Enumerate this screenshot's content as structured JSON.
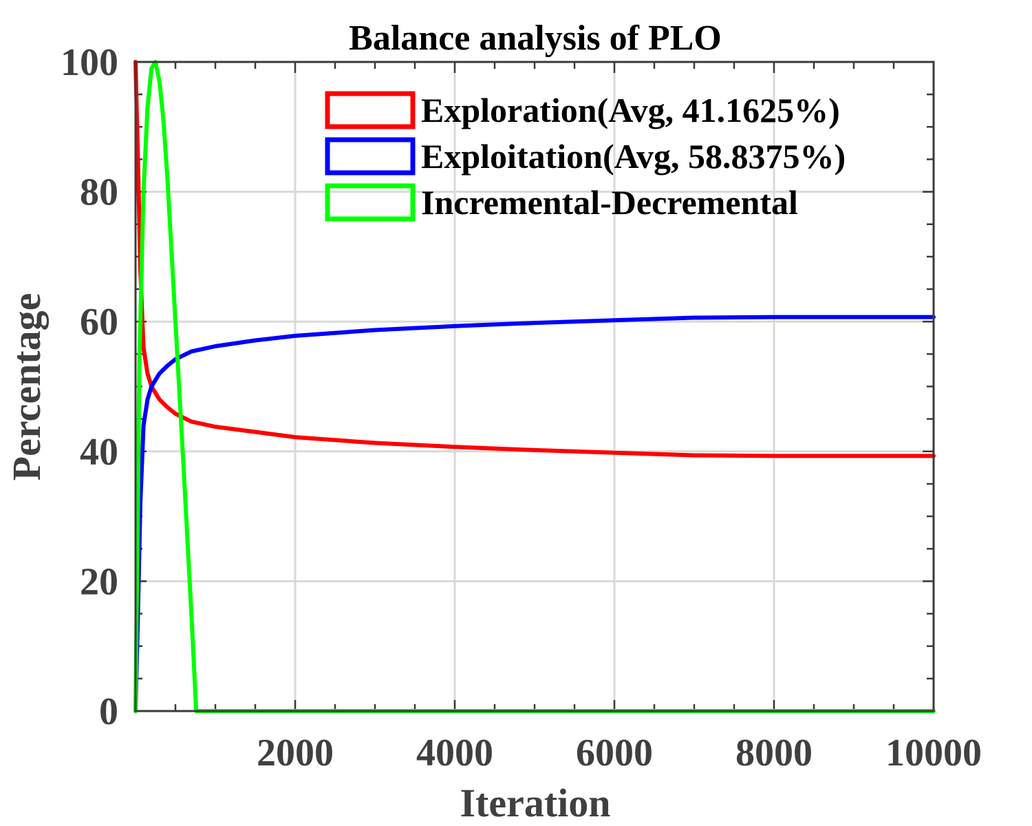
{
  "chart_data": {
    "type": "line",
    "title": "Balance analysis of PLO",
    "xlabel": "Iteration",
    "ylabel": "Percentage",
    "xlim": [
      0,
      10000
    ],
    "ylim": [
      0,
      100
    ],
    "xticks": [
      2000,
      4000,
      6000,
      8000,
      10000
    ],
    "yticks": [
      0,
      20,
      40,
      60,
      80,
      100
    ],
    "grid": true,
    "legend_position": "top-right",
    "series": [
      {
        "name": "Exploration(Avg, 41.1625%)",
        "color": "#ff0000",
        "x": [
          0,
          30,
          60,
          100,
          150,
          200,
          300,
          400,
          500,
          700,
          1000,
          1500,
          2000,
          3000,
          4000,
          5000,
          6000,
          7000,
          8000,
          9000,
          10000
        ],
        "y": [
          100,
          85,
          68,
          56,
          52,
          50,
          48,
          46.8,
          45.8,
          44.6,
          43.8,
          43,
          42.2,
          41.3,
          40.7,
          40.2,
          39.8,
          39.4,
          39.3,
          39.3,
          39.3
        ]
      },
      {
        "name": "Exploitation(Avg, 58.8375%)",
        "color": "#0000ff",
        "x": [
          0,
          30,
          60,
          100,
          150,
          200,
          300,
          400,
          500,
          700,
          1000,
          1500,
          2000,
          3000,
          4000,
          5000,
          6000,
          7000,
          8000,
          9000,
          10000
        ],
        "y": [
          0,
          15,
          32,
          44,
          48,
          50,
          52,
          53.2,
          54.2,
          55.4,
          56.2,
          57.1,
          57.8,
          58.7,
          59.3,
          59.8,
          60.2,
          60.6,
          60.7,
          60.7,
          60.7
        ]
      },
      {
        "name": "Incremental-Decremental",
        "color": "#00ff00",
        "x": [
          0,
          50,
          100,
          150,
          200,
          250,
          300,
          350,
          400,
          450,
          500,
          600,
          700,
          760,
          800,
          1000,
          2000,
          4000,
          6000,
          8000,
          10000
        ],
        "y": [
          0,
          55,
          80,
          93,
          99,
          100,
          97,
          91,
          82,
          71,
          60,
          38,
          15,
          0,
          0,
          0,
          0,
          0,
          0,
          0,
          0
        ]
      }
    ]
  }
}
